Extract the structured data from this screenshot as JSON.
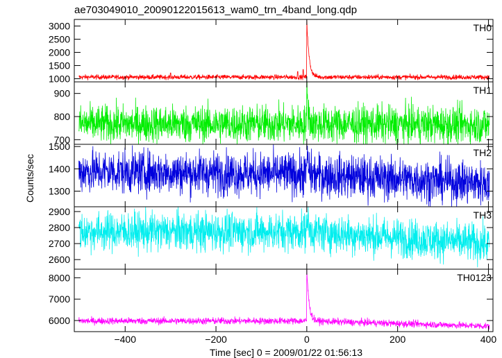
{
  "page_title": "ae703049010_20090122015613_wam0_trn_4band_long.qdp",
  "chart_data": {
    "type": "line",
    "title": "ae703049010_20090122015613_wam0_trn_4band_long.qdp",
    "xlabel": "Time [sec] 0 = 2009/01/22 01:56:13",
    "ylabel": "Counts/sec",
    "xlim": [
      -512,
      410
    ],
    "x_ticks": [
      -400,
      -200,
      0,
      200,
      400
    ],
    "panels": [
      {
        "name": "TH0",
        "color": "#ff0000",
        "ylim": [
          880,
          3250
        ],
        "y_ticks": [
          1000,
          1500,
          2000,
          2500,
          3000
        ],
        "baseline": 1060,
        "noise": 45,
        "pre_slope": 0,
        "post_slope": 0,
        "peak_x": 0,
        "peak_y": 3250,
        "decay": 5,
        "spikes": [
          {
            "x": -300,
            "y": 1220
          },
          {
            "x": -20,
            "y": 1270
          },
          {
            "x": -8,
            "y": 1350
          }
        ]
      },
      {
        "name": "TH1",
        "color": "#00ee00",
        "ylim": [
          680,
          950
        ],
        "y_ticks": [
          700,
          800,
          900
        ],
        "baseline": 768,
        "noise": 40,
        "pre_slope": 0,
        "post_slope": -0.01,
        "peak_x": 0,
        "peak_y": 950,
        "decay": 3,
        "spikes": []
      },
      {
        "name": "TH2",
        "color": "#0000dd",
        "ylim": [
          1230,
          1510
        ],
        "y_ticks": [
          1300,
          1400,
          1500
        ],
        "baseline": 1375,
        "noise": 48,
        "pre_slope": -0.03,
        "post_slope": -0.1,
        "peak_x": 0,
        "peak_y": 1480,
        "decay": 3,
        "spikes": []
      },
      {
        "name": "TH3",
        "color": "#00eeee",
        "ylim": [
          2540,
          2930
        ],
        "y_ticks": [
          2600,
          2700,
          2800,
          2900
        ],
        "baseline": 2775,
        "noise": 60,
        "pre_slope": 0,
        "post_slope": -0.19,
        "peak_x": 0,
        "peak_y": 2900,
        "decay": 3,
        "spikes": []
      },
      {
        "name": "TH0123",
        "color": "#ff00ff",
        "ylim": [
          5480,
          8400
        ],
        "y_ticks": [
          6000,
          7000,
          8000
        ],
        "baseline": 5980,
        "noise": 80,
        "pre_slope": 0,
        "post_slope": -0.6,
        "peak_x": 0,
        "peak_y": 8400,
        "decay": 5,
        "spikes": []
      }
    ]
  }
}
